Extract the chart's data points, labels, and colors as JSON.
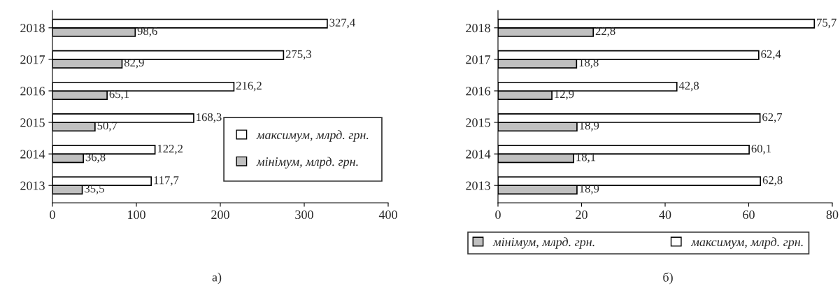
{
  "chart_data": [
    {
      "type": "bar",
      "orientation": "horizontal",
      "categories": [
        "2018",
        "2017",
        "2016",
        "2015",
        "2014",
        "2013"
      ],
      "series": [
        {
          "name": "мінімум, млрд. грн.",
          "color": "#c0c0c0",
          "values": [
            98.6,
            82.9,
            65.1,
            50.7,
            36.8,
            35.5
          ],
          "value_labels": [
            "98,6",
            "82,9",
            "65,1",
            "50,7",
            "36,8",
            "35,5"
          ]
        },
        {
          "name": "максимум, млрд. грн.",
          "color": "#ffffff",
          "values": [
            327.4,
            275.3,
            216.2,
            168.3,
            122.2,
            117.7
          ],
          "value_labels": [
            "327,4",
            "275,3",
            "216,2",
            "168,3",
            "122,2",
            "117,7"
          ]
        }
      ],
      "xlim": [
        0,
        400
      ],
      "xticks": [
        0,
        100,
        200,
        300,
        400
      ],
      "legend": "bottom right",
      "grid": false,
      "annotations": [
        "а)"
      ]
    },
    {
      "type": "bar",
      "orientation": "horizontal",
      "categories": [
        "2018",
        "2017",
        "2016",
        "2015",
        "2014",
        "2013"
      ],
      "series": [
        {
          "name": "мінімум, млрд. грн.",
          "color": "#c0c0c0",
          "values": [
            22.8,
            18.8,
            12.9,
            18.9,
            18.1,
            18.9
          ],
          "value_labels": [
            "22,8",
            "18,8",
            "12,9",
            "18,9",
            "18,1",
            "18,9"
          ]
        },
        {
          "name": "максимум, млрд. грн.",
          "color": "#ffffff",
          "values": [
            75.7,
            62.4,
            42.8,
            62.7,
            60.1,
            62.8
          ],
          "value_labels": [
            "75,7",
            "62,4",
            "42,8",
            "62,7",
            "60,1",
            "62,8"
          ]
        }
      ],
      "xlim": [
        0,
        80
      ],
      "xticks": [
        0,
        20,
        40,
        60,
        80
      ],
      "legend": "bottom",
      "grid": false,
      "annotations": [
        "б)"
      ]
    }
  ]
}
